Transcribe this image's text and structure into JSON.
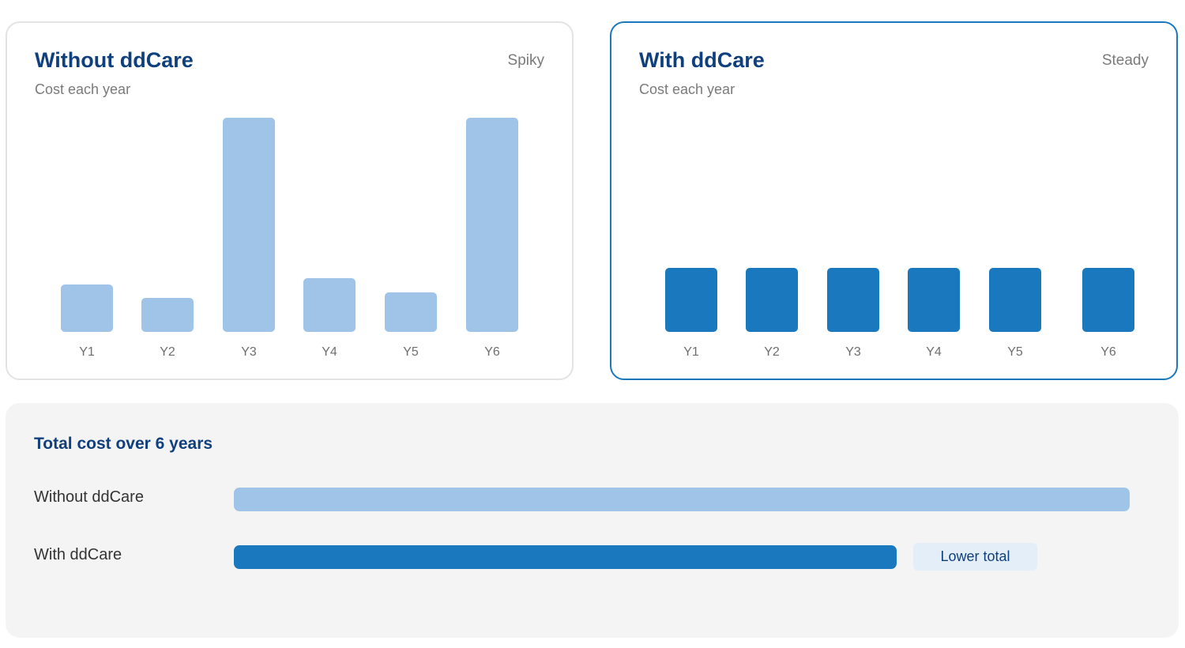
{
  "colors": {
    "light_bar": "#9fc4e8",
    "dark_bar": "#1a78bf",
    "title": "#0f3f7c"
  },
  "without_card": {
    "title": "Without ddCare",
    "tag": "Spiky",
    "subtitle": "Cost each year"
  },
  "with_card": {
    "title": "With ddCare",
    "tag": "Steady",
    "subtitle": "Cost each year"
  },
  "totals": {
    "title": "Total cost over 6 years",
    "without_label": "Without ddCare",
    "with_label": "With ddCare",
    "badge": "Lower total"
  },
  "chart_data": [
    {
      "type": "bar",
      "title": "Without ddCare",
      "subtitle": "Cost each year",
      "categories": [
        "Y1",
        "Y2",
        "Y3",
        "Y4",
        "Y5",
        "Y6"
      ],
      "values": [
        22,
        16,
        100,
        25,
        18.5,
        100
      ],
      "ylim": [
        0,
        100
      ],
      "grid": false
    },
    {
      "type": "bar",
      "title": "With ddCare",
      "subtitle": "Cost each year",
      "categories": [
        "Y1",
        "Y2",
        "Y3",
        "Y4",
        "Y5",
        "Y6"
      ],
      "values": [
        30,
        30,
        30,
        30,
        30,
        30
      ],
      "ylim": [
        0,
        100
      ],
      "grid": false
    },
    {
      "type": "bar",
      "orientation": "horizontal",
      "title": "Total cost over 6 years",
      "categories": [
        "Without ddCare",
        "With ddCare"
      ],
      "values": [
        100,
        74
      ],
      "xlim": [
        0,
        100
      ],
      "grid": false
    }
  ]
}
